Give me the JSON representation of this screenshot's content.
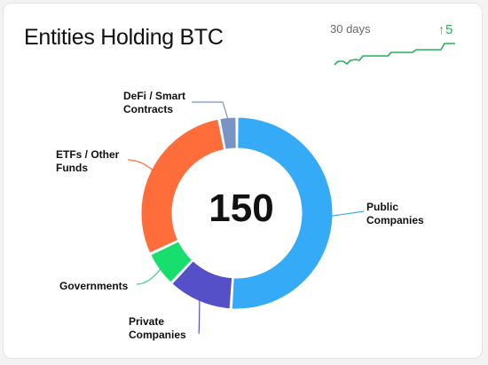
{
  "widget": {
    "title": "Entities Holding BTC",
    "period_label": "30 days",
    "change_arrow": "↑",
    "change_value": "5",
    "change_color": "#22b35a",
    "center_value": "150"
  },
  "sparkline": {
    "trend": "rising",
    "color": "#22b35a"
  },
  "chart_data": {
    "type": "pie",
    "variant": "donut",
    "categories": [
      "Public Companies",
      "Private Companies",
      "Governments",
      "ETFs / Other Funds",
      "DeFi / Smart Contracts"
    ],
    "values": [
      51,
      11,
      6,
      29,
      3
    ],
    "colors": [
      "#35aaf7",
      "#5650c8",
      "#18de6d",
      "#ff6e3a",
      "#7993c4"
    ],
    "labels": [
      {
        "text": "Public\nCompanies"
      },
      {
        "text": "Private\nCompanies"
      },
      {
        "text": "Governments"
      },
      {
        "text": "ETFs / Other\nFunds"
      },
      {
        "text": "DeFi / Smart\nContracts"
      }
    ],
    "total": "150"
  }
}
